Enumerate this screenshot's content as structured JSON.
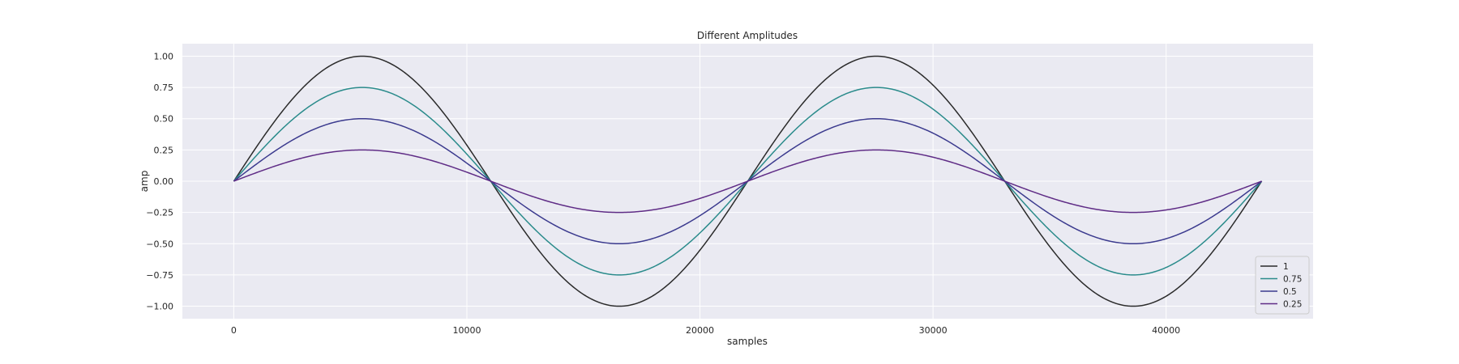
{
  "chart_data": {
    "type": "line",
    "title": "Different Amplitudes",
    "xlabel": "samples",
    "ylabel": "amp",
    "xlim": [
      -2205,
      46305
    ],
    "ylim": [
      -1.1,
      1.1
    ],
    "xticks": [
      0,
      10000,
      20000,
      30000,
      40000
    ],
    "yticks": [
      -1.0,
      -0.75,
      -0.5,
      -0.25,
      0.0,
      0.25,
      0.5,
      0.75,
      1.0
    ],
    "ytick_labels": [
      "−1.00",
      "−0.75",
      "−0.50",
      "−0.25",
      "0.00",
      "0.25",
      "0.50",
      "0.75",
      "1.00"
    ],
    "grid": true,
    "legend_position": "lower-right",
    "background": "#eaeaf2",
    "x_range": [
      0,
      44100
    ],
    "cycles": 2,
    "series": [
      {
        "name": "1",
        "amplitude": 1.0,
        "color": "#2a2a2a"
      },
      {
        "name": "0.75",
        "amplitude": 0.75,
        "color": "#2a8b8b"
      },
      {
        "name": "0.5",
        "amplitude": 0.5,
        "color": "#3b3a8e"
      },
      {
        "name": "0.25",
        "amplitude": 0.25,
        "color": "#5f2c86"
      }
    ]
  }
}
